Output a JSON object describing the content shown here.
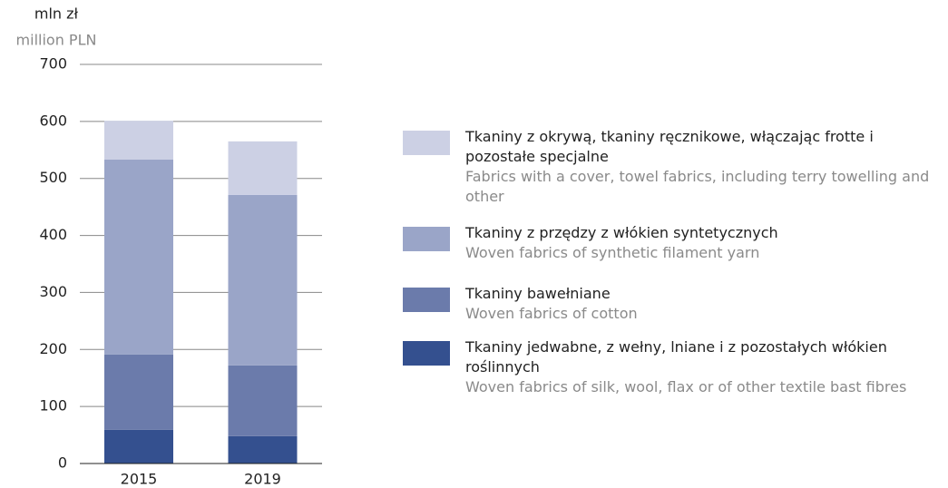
{
  "chart_data": {
    "type": "bar",
    "stacked": true,
    "y_label": "mln zł",
    "y_label_en": "million PLN",
    "categories": [
      "2015",
      "2019"
    ],
    "series": [
      {
        "name": "Tkaniny jedwabne, z wełny, lniane i z pozostałych włókien roślinnych",
        "name_en": "Woven fabrics of silk, wool, flax or of other textile bast fibres",
        "color": "#34508f",
        "values": [
          59,
          48
        ]
      },
      {
        "name": "Tkaniny bawełniane",
        "name_en": "Woven fabrics of cotton",
        "color": "#6b7bab",
        "values": [
          132,
          124
        ]
      },
      {
        "name": "Tkaniny z przędzy z włókien syntetycznych",
        "name_en": "Woven fabrics of synthetic filament yarn",
        "color": "#9aa5c8",
        "values": [
          342,
          299
        ]
      },
      {
        "name": "Tkaniny z okrywą, tkaniny ręcznikowe, włączając frotte i pozostałe specjalne",
        "name_en": "Fabrics with a cover, towel fabrics, including terry towelling and other",
        "color": "#ccd0e4",
        "values": [
          68,
          94
        ]
      }
    ],
    "ylim": [
      0,
      700
    ],
    "yticks": [
      0,
      100,
      200,
      300,
      400,
      500,
      600,
      700
    ],
    "grid": true
  }
}
